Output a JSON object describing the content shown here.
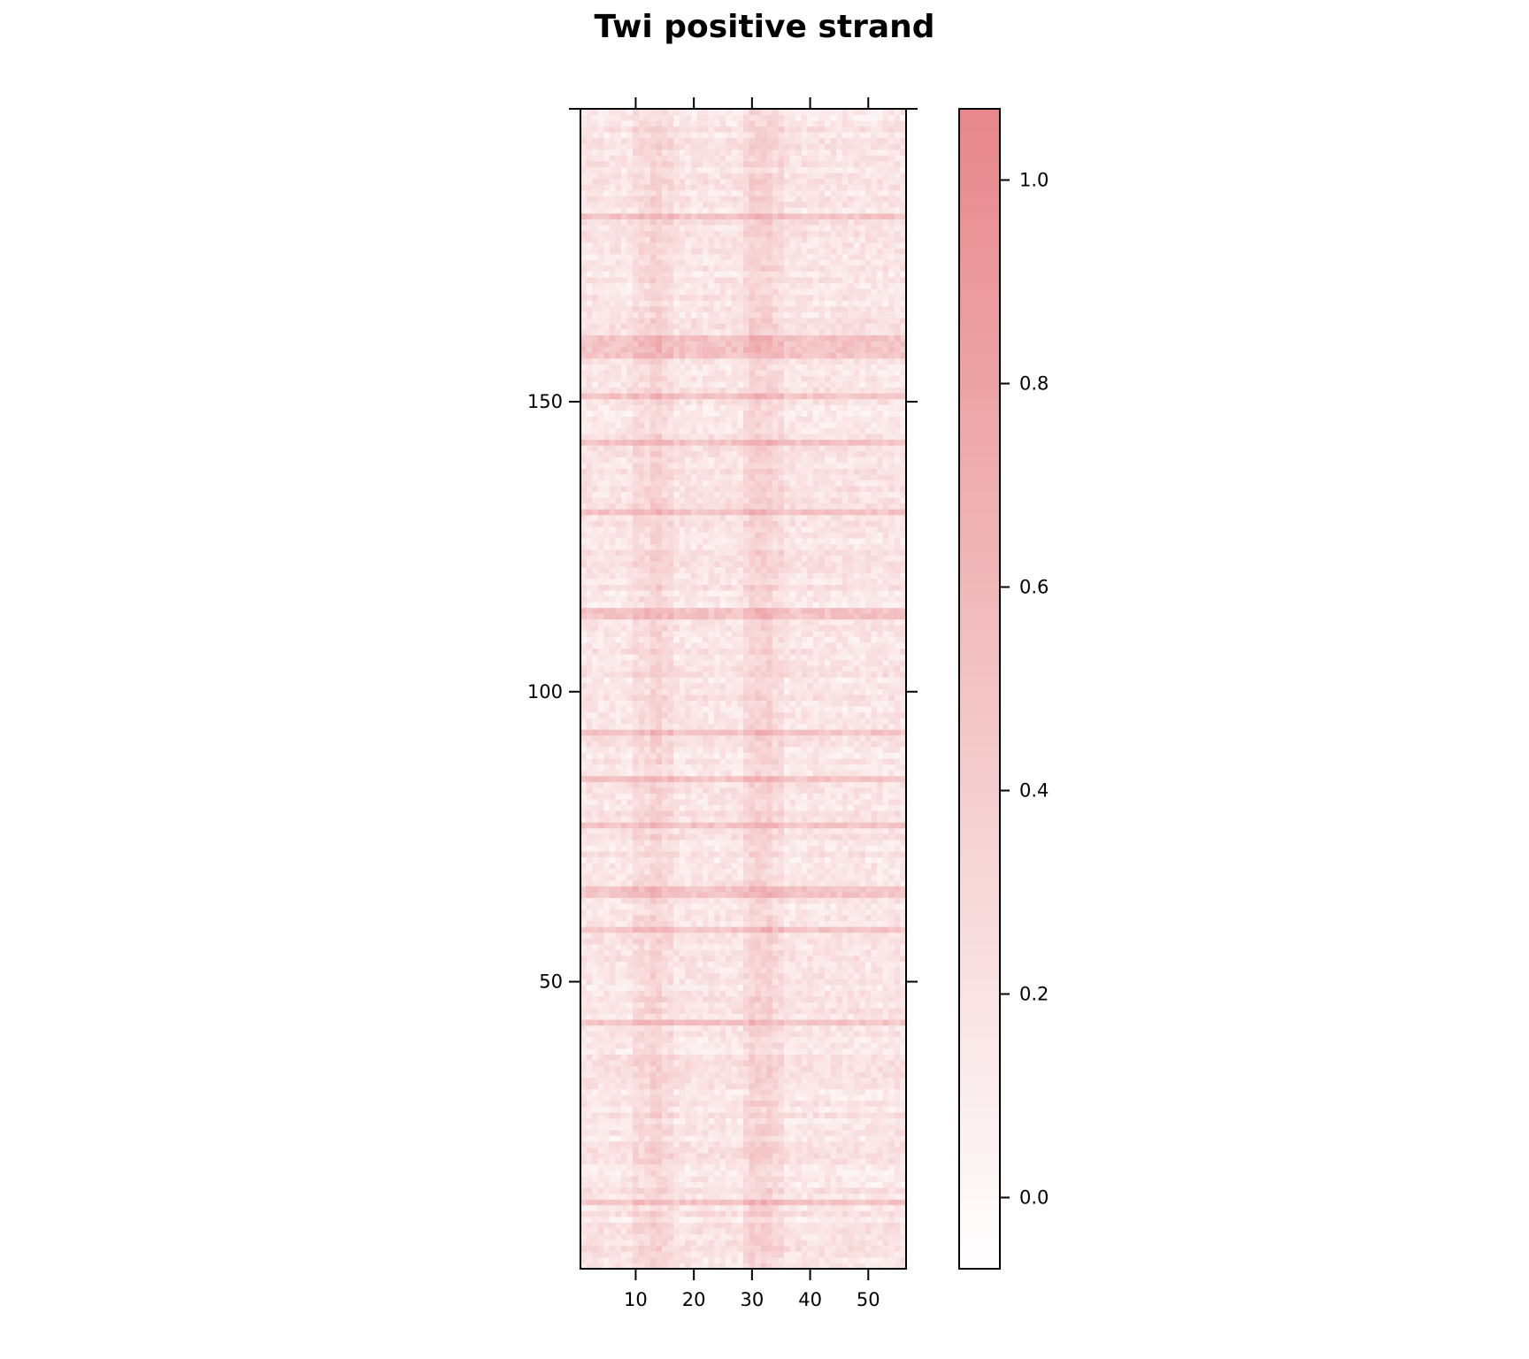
{
  "chart_data": {
    "type": "heatmap",
    "title": "Twi positive strand",
    "xlabel": "",
    "ylabel": "",
    "x_range": [
      0.5,
      56.5
    ],
    "y_range": [
      0.5,
      200.5
    ],
    "n_cols": 56,
    "n_rows": 200,
    "x_ticks": [
      10,
      20,
      30,
      40,
      50
    ],
    "x_tick_labels": [
      "10",
      "20",
      "30",
      "40",
      "50"
    ],
    "y_ticks": [
      50,
      100,
      150
    ],
    "y_tick_labels": [
      "50",
      "100",
      "150"
    ],
    "colorbar": {
      "range": [
        -0.07,
        1.07
      ],
      "ticks": [
        0.0,
        0.2,
        0.4,
        0.6,
        0.8,
        1.0
      ],
      "tick_labels": [
        "0.0",
        "0.2",
        "0.4",
        "0.6",
        "0.8",
        "1.0"
      ],
      "color_low": "#ffffff",
      "color_high": "#e8878b"
    },
    "enriched_columns": [
      13,
      14,
      30,
      31,
      32,
      33
    ],
    "enriched_rows": [
      12,
      43,
      59,
      65,
      66,
      77,
      85,
      93,
      113,
      114,
      131,
      143,
      151,
      158,
      159,
      160,
      161,
      182
    ]
  }
}
